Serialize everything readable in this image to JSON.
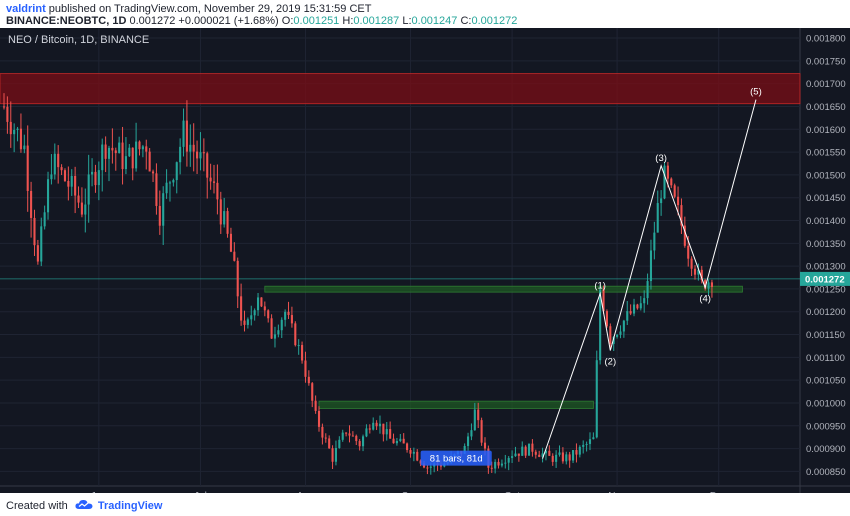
{
  "header": {
    "author": "valdrint",
    "published_text": "published on TradingView.com, November 29, 2019 15:31:59 CET",
    "symbol": "BINANCE:NEOBTC, 1D",
    "last": "0.001272",
    "change": "+0.000021 (+1.68%)",
    "o_label": "O:",
    "o_value": "0.001251",
    "h_label": "H:",
    "h_value": "0.001287",
    "l_label": "L:",
    "l_value": "0.001247",
    "c_label": "C:",
    "c_value": "0.001272"
  },
  "footer": {
    "created_with": "Created with",
    "brand": "TradingView"
  },
  "chart_data": {
    "type": "candlestick",
    "title": "NEO / Bitcoin, 1D, BINANCE",
    "price_label": "0.001272",
    "x_tick_labels": [
      "Jun",
      "Jul",
      "Aug",
      "Sep",
      "Oct",
      "Nov",
      "Dec"
    ],
    "y_ticks": [
      "0.001800",
      "0.001750",
      "0.001700",
      "0.001650",
      "0.001600",
      "0.001550",
      "0.001500",
      "0.001450",
      "0.001400",
      "0.001350",
      "0.001300",
      "0.001250",
      "0.001200",
      "0.001150",
      "0.001100",
      "0.001050",
      "0.001000",
      "0.000950",
      "0.000900",
      "0.000850"
    ],
    "y_range": [
      0.000818,
      0.001822
    ],
    "grid": true,
    "colors": {
      "background": "#131722",
      "up": "#26a69a",
      "down": "#ef5350",
      "grid": "#1f2433",
      "resistance_zone": "#7b0d15",
      "support_zone": "#1e5c22",
      "price_line": "#26a69a",
      "wave_line": "#ffffff"
    },
    "zones": [
      {
        "name": "resistance",
        "from": 0.001656,
        "to": 0.001722
      },
      {
        "name": "support-high",
        "from": 0.001243,
        "to": 0.001256
      },
      {
        "name": "support-low",
        "from": 0.000988,
        "to": 0.001004
      }
    ],
    "date_range_label": "81 bars, 81d",
    "wave_labels": [
      {
        "label": "(1)",
        "date": "2019-10-27",
        "value": 0.00124
      },
      {
        "label": "(2)",
        "date": "2019-10-30",
        "value": 0.001115
      },
      {
        "label": "(3)",
        "date": "2019-11-14",
        "value": 0.00152
      },
      {
        "label": "(4)",
        "date": "2019-11-27",
        "value": 0.001253
      },
      {
        "label": "(5)",
        "date": "2019-12-12",
        "value": 0.001665
      }
    ],
    "wave_path": [
      {
        "date": "2019-10-10",
        "value": 0.000878
      },
      {
        "date": "2019-10-27",
        "value": 0.00124
      },
      {
        "date": "2019-10-30",
        "value": 0.001115
      },
      {
        "date": "2019-11-14",
        "value": 0.00152
      },
      {
        "date": "2019-11-27",
        "value": 0.001253
      },
      {
        "date": "2019-12-12",
        "value": 0.001665
      }
    ],
    "x_domain": [
      "2019-05-04",
      "2019-12-25"
    ],
    "candles_approx_path": [
      [
        "2019-05-04",
        0.00165
      ],
      [
        "2019-05-10",
        0.00156
      ],
      [
        "2019-05-14",
        0.0013
      ],
      [
        "2019-05-18",
        0.00153
      ],
      [
        "2019-05-23",
        0.00148
      ],
      [
        "2019-05-27",
        0.00143
      ],
      [
        "2019-06-03",
        0.00157
      ],
      [
        "2019-06-09",
        0.00153
      ],
      [
        "2019-06-15",
        0.00157
      ],
      [
        "2019-06-19",
        0.00142
      ],
      [
        "2019-06-26",
        0.00159
      ],
      [
        "2019-07-01",
        0.00153
      ],
      [
        "2019-07-06",
        0.00145
      ],
      [
        "2019-07-10",
        0.00133
      ],
      [
        "2019-07-14",
        0.00115
      ],
      [
        "2019-07-18",
        0.00124
      ],
      [
        "2019-07-22",
        0.00115
      ],
      [
        "2019-07-26",
        0.0012
      ],
      [
        "2019-07-31",
        0.0011
      ],
      [
        "2019-08-04",
        0.00097
      ],
      [
        "2019-08-09",
        0.00088
      ],
      [
        "2019-08-13",
        0.00094
      ],
      [
        "2019-08-17",
        0.00091
      ],
      [
        "2019-08-21",
        0.00097
      ],
      [
        "2019-08-26",
        0.00092
      ],
      [
        "2019-09-01",
        0.0009
      ],
      [
        "2019-09-06",
        0.00086
      ],
      [
        "2019-09-12",
        0.00087
      ],
      [
        "2019-09-17",
        0.0009
      ],
      [
        "2019-09-20",
        0.00098
      ],
      [
        "2019-09-24",
        0.00086
      ],
      [
        "2019-10-01",
        0.00089
      ],
      [
        "2019-10-07",
        0.0009
      ],
      [
        "2019-10-12",
        0.00088
      ],
      [
        "2019-10-18",
        0.00088
      ],
      [
        "2019-10-25",
        0.00092
      ],
      [
        "2019-10-27",
        0.00125
      ],
      [
        "2019-10-30",
        0.00114
      ],
      [
        "2019-11-04",
        0.00119
      ],
      [
        "2019-11-09",
        0.00122
      ],
      [
        "2019-11-13",
        0.00143
      ],
      [
        "2019-11-15",
        0.0015
      ],
      [
        "2019-11-19",
        0.00142
      ],
      [
        "2019-11-22",
        0.00133
      ],
      [
        "2019-11-26",
        0.00126
      ],
      [
        "2019-11-29",
        0.001272
      ]
    ]
  }
}
